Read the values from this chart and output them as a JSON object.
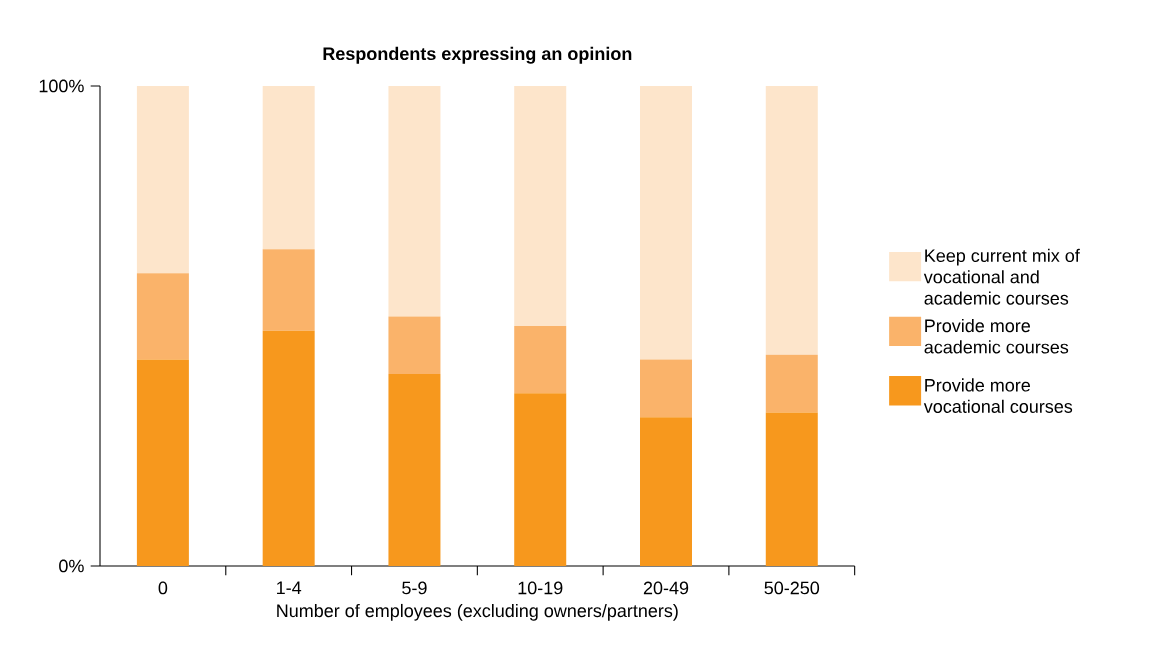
{
  "chart_data": {
    "type": "bar",
    "stacked": true,
    "title": "Respondents expressing an opinion",
    "xlabel": "Number of employees (excluding owners/partners)",
    "categories": [
      "0",
      "1-4",
      "5-9",
      "10-19",
      "20-49",
      "50-250"
    ],
    "series": [
      {
        "name": "Provide more vocational courses",
        "color": "#f7981d",
        "values": [
          43,
          49,
          40,
          36,
          31,
          32
        ]
      },
      {
        "name": "Provide more academic courses",
        "color": "#fab36a",
        "values": [
          18,
          17,
          12,
          14,
          12,
          12
        ]
      },
      {
        "name": "Keep current mix of vocational and academic courses",
        "color": "#fde5cb",
        "values": [
          39,
          34,
          48,
          50,
          57,
          56
        ]
      }
    ],
    "ylim": [
      0,
      100
    ],
    "yticks": [
      {
        "value": 0,
        "label": "0%"
      },
      {
        "value": 100,
        "label": "100%"
      }
    ],
    "grid": false,
    "legend": "right"
  }
}
